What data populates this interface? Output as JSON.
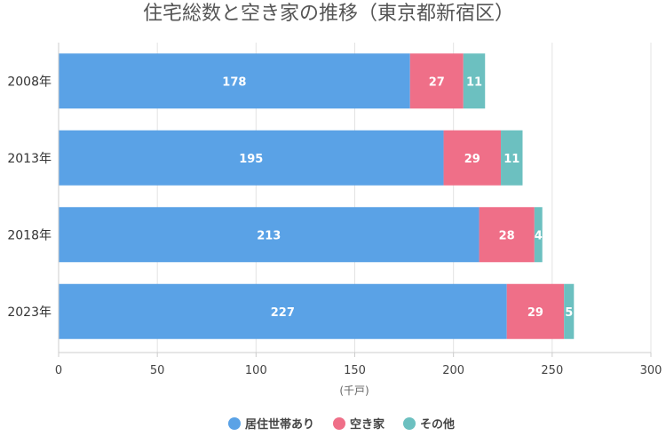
{
  "chart_data": {
    "type": "bar",
    "orientation": "horizontal",
    "stacked": true,
    "title": "住宅総数と空き家の推移（東京都新宿区）",
    "xlabel": "(千戸)",
    "ylabel": "",
    "xlim": [
      0,
      300
    ],
    "xticks": [
      0,
      50,
      100,
      150,
      200,
      250,
      300
    ],
    "grid": true,
    "legend_position": "bottom",
    "categories": [
      "2008年",
      "2013年",
      "2018年",
      "2023年"
    ],
    "series": [
      {
        "name": "居住世帯あり",
        "color": "#5aa2e6",
        "values": [
          178,
          195,
          213,
          227
        ]
      },
      {
        "name": "空き家",
        "color": "#ef6f88",
        "values": [
          27,
          29,
          28,
          29
        ]
      },
      {
        "name": "その他",
        "color": "#6cc0c0",
        "values": [
          11,
          11,
          4,
          5
        ]
      }
    ]
  }
}
